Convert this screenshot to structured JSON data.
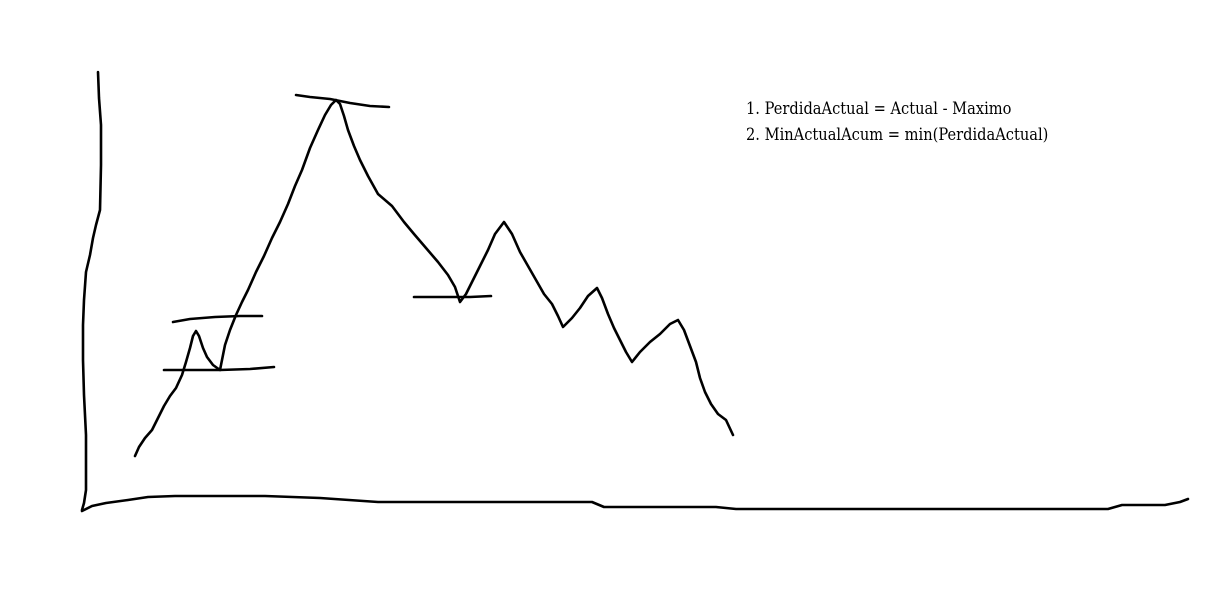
{
  "annotations": {
    "formula_1": "1. PerdidaActual = Actual - Maximo",
    "formula_2": "2. MinActualAcum = min(PerdidaActual)"
  },
  "colors": {
    "background": "#ffffff",
    "ink": "#000000"
  }
}
